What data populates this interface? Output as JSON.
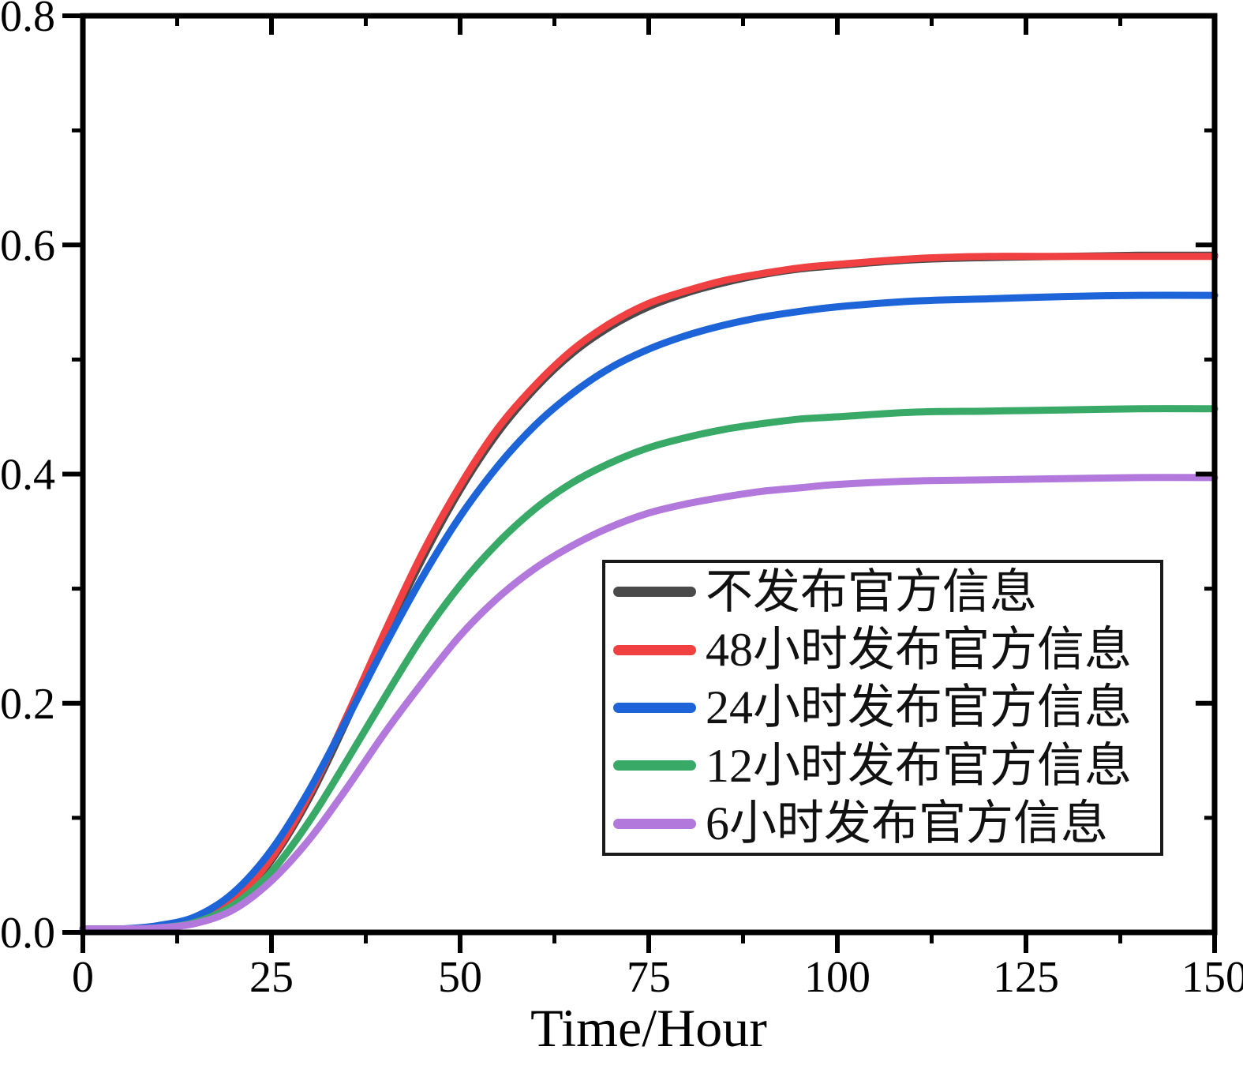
{
  "chart_data": {
    "type": "line",
    "title": "",
    "xlabel": "Time/Hour",
    "ylabel": "",
    "xlim": [
      0,
      150
    ],
    "ylim": [
      0.0,
      0.8
    ],
    "grid": false,
    "legend_position": "inside lower-right",
    "x_major_ticks": [
      0,
      25,
      50,
      75,
      100,
      125,
      150
    ],
    "x_major_tick_labels": [
      "0",
      "25",
      "50",
      "75",
      "100",
      "125",
      "150"
    ],
    "x_minor_ticks": [
      12.5,
      37.5,
      62.5,
      87.5,
      112.5,
      137.5
    ],
    "y_major_ticks": [
      0.0,
      0.2,
      0.4,
      0.6,
      0.8
    ],
    "y_major_tick_labels": [
      "0.0",
      "0.2",
      "0.4",
      "0.6",
      "0.8"
    ],
    "y_minor_ticks": [
      0.1,
      0.3,
      0.5,
      0.7
    ],
    "axis_color": "#000000",
    "series": [
      {
        "name": "不发布官方信息",
        "color": "#4A4A4A",
        "final_value": 0.591,
        "points": [
          [
            0,
            0.003
          ],
          [
            5,
            0.003
          ],
          [
            10,
            0.004
          ],
          [
            15,
            0.01
          ],
          [
            20,
            0.027
          ],
          [
            25,
            0.063
          ],
          [
            30,
            0.117
          ],
          [
            35,
            0.185
          ],
          [
            40,
            0.258
          ],
          [
            45,
            0.326
          ],
          [
            50,
            0.386
          ],
          [
            55,
            0.436
          ],
          [
            60,
            0.475
          ],
          [
            65,
            0.506
          ],
          [
            70,
            0.529
          ],
          [
            75,
            0.546
          ],
          [
            80,
            0.558
          ],
          [
            85,
            0.567
          ],
          [
            90,
            0.574
          ],
          [
            95,
            0.579
          ],
          [
            100,
            0.582
          ],
          [
            110,
            0.587
          ],
          [
            120,
            0.589
          ],
          [
            130,
            0.59
          ],
          [
            140,
            0.591
          ],
          [
            150,
            0.591
          ]
        ]
      },
      {
        "name": "48小时发布官方信息",
        "color": "#F04041",
        "final_value": 0.59,
        "points": [
          [
            0,
            0.003
          ],
          [
            5,
            0.003
          ],
          [
            10,
            0.004
          ],
          [
            15,
            0.01
          ],
          [
            20,
            0.028
          ],
          [
            25,
            0.065
          ],
          [
            30,
            0.12
          ],
          [
            35,
            0.189
          ],
          [
            40,
            0.262
          ],
          [
            45,
            0.331
          ],
          [
            50,
            0.39
          ],
          [
            55,
            0.44
          ],
          [
            60,
            0.478
          ],
          [
            65,
            0.509
          ],
          [
            70,
            0.532
          ],
          [
            75,
            0.549
          ],
          [
            80,
            0.56
          ],
          [
            85,
            0.569
          ],
          [
            90,
            0.575
          ],
          [
            95,
            0.58
          ],
          [
            100,
            0.583
          ],
          [
            110,
            0.588
          ],
          [
            120,
            0.59
          ],
          [
            130,
            0.59
          ],
          [
            140,
            0.59
          ],
          [
            150,
            0.59
          ]
        ]
      },
      {
        "name": "24小时发布官方信息",
        "color": "#1C64D8",
        "final_value": 0.556,
        "points": [
          [
            0,
            0.003
          ],
          [
            5,
            0.003
          ],
          [
            10,
            0.006
          ],
          [
            15,
            0.014
          ],
          [
            20,
            0.035
          ],
          [
            25,
            0.072
          ],
          [
            30,
            0.124
          ],
          [
            35,
            0.186
          ],
          [
            40,
            0.25
          ],
          [
            45,
            0.31
          ],
          [
            50,
            0.363
          ],
          [
            55,
            0.407
          ],
          [
            60,
            0.443
          ],
          [
            65,
            0.471
          ],
          [
            70,
            0.493
          ],
          [
            75,
            0.509
          ],
          [
            80,
            0.521
          ],
          [
            85,
            0.53
          ],
          [
            90,
            0.537
          ],
          [
            95,
            0.542
          ],
          [
            100,
            0.546
          ],
          [
            110,
            0.551
          ],
          [
            120,
            0.553
          ],
          [
            130,
            0.555
          ],
          [
            140,
            0.556
          ],
          [
            150,
            0.556
          ]
        ]
      },
      {
        "name": "12小时发布官方信息",
        "color": "#38A966",
        "final_value": 0.457,
        "points": [
          [
            0,
            0.003
          ],
          [
            5,
            0.003
          ],
          [
            10,
            0.004
          ],
          [
            15,
            0.009
          ],
          [
            20,
            0.024
          ],
          [
            25,
            0.053
          ],
          [
            30,
            0.097
          ],
          [
            35,
            0.15
          ],
          [
            40,
            0.205
          ],
          [
            45,
            0.258
          ],
          [
            50,
            0.303
          ],
          [
            55,
            0.34
          ],
          [
            60,
            0.37
          ],
          [
            65,
            0.393
          ],
          [
            70,
            0.41
          ],
          [
            75,
            0.423
          ],
          [
            80,
            0.432
          ],
          [
            85,
            0.439
          ],
          [
            90,
            0.444
          ],
          [
            95,
            0.448
          ],
          [
            100,
            0.45
          ],
          [
            110,
            0.454
          ],
          [
            120,
            0.455
          ],
          [
            130,
            0.456
          ],
          [
            140,
            0.457
          ],
          [
            150,
            0.457
          ]
        ]
      },
      {
        "name": "6小时发布官方信息",
        "color": "#B278DC",
        "final_value": 0.397,
        "points": [
          [
            0,
            0.003
          ],
          [
            5,
            0.003
          ],
          [
            10,
            0.004
          ],
          [
            15,
            0.008
          ],
          [
            20,
            0.02
          ],
          [
            25,
            0.045
          ],
          [
            30,
            0.081
          ],
          [
            35,
            0.126
          ],
          [
            40,
            0.174
          ],
          [
            45,
            0.218
          ],
          [
            50,
            0.259
          ],
          [
            55,
            0.292
          ],
          [
            60,
            0.318
          ],
          [
            65,
            0.338
          ],
          [
            70,
            0.354
          ],
          [
            75,
            0.366
          ],
          [
            80,
            0.374
          ],
          [
            85,
            0.38
          ],
          [
            90,
            0.385
          ],
          [
            95,
            0.388
          ],
          [
            100,
            0.391
          ],
          [
            110,
            0.394
          ],
          [
            120,
            0.395
          ],
          [
            130,
            0.396
          ],
          [
            140,
            0.397
          ],
          [
            150,
            0.397
          ]
        ]
      }
    ]
  },
  "legend": {
    "entries": [
      "不发布官方信息",
      "48小时发布官方信息",
      "24小时发布官方信息",
      "12小时发布官方信息",
      "6小时发布官方信息"
    ]
  }
}
